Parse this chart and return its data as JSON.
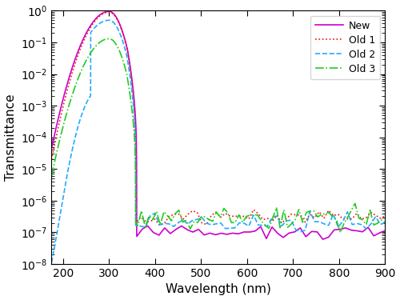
{
  "xlabel": "Wavelength (nm)",
  "ylabel": "Transmittance",
  "xlim": [
    175,
    900
  ],
  "ylim": [
    1e-08,
    1.0
  ],
  "xticks": [
    200,
    300,
    400,
    500,
    600,
    700,
    800,
    900
  ],
  "legend_labels": [
    "New",
    "Old 1",
    "Old 2",
    "Old 3"
  ],
  "colors": [
    "#CC00CC",
    "#EE1111",
    "#22AAFF",
    "#22CC22"
  ],
  "linestyles": [
    "-",
    ":",
    "--",
    "-."
  ],
  "linewidths": [
    1.2,
    1.2,
    1.2,
    1.2
  ],
  "figsize": [
    5.0,
    3.75
  ],
  "dpi": 100
}
